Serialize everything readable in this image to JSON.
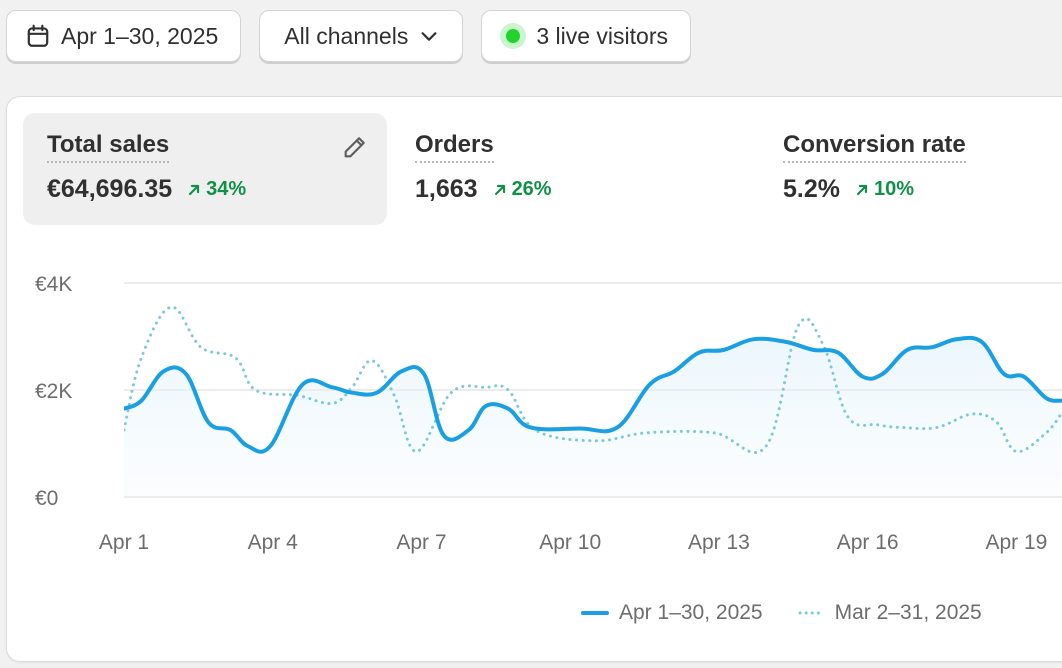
{
  "toolbar": {
    "date_range_label": "Apr 1–30, 2025",
    "channel_label": "All channels",
    "live_label": "3 live visitors"
  },
  "metrics": [
    {
      "label": "Total sales",
      "value": "€64,696.35",
      "change": "34%"
    },
    {
      "label": "Orders",
      "value": "1,663",
      "change": "26%"
    },
    {
      "label": "Conversion rate",
      "value": "5.2%",
      "change": "10%"
    }
  ],
  "colors": {
    "current": "#1a9fe3",
    "previous": "#7ccad6",
    "positive": "#11904a",
    "grid": "#e6e6e6",
    "axis_text": "#6d6d6d"
  },
  "icons": {
    "date": "calendar-icon",
    "channel": "chevron-down-icon",
    "edit": "pencil-icon",
    "change": "arrow-up-right-icon"
  },
  "chart_data": {
    "type": "line",
    "y_tick_labels": [
      "€4K",
      "€2K",
      "€0"
    ],
    "y_ticks": [
      4000,
      2000,
      0
    ],
    "ylim": [
      0,
      4000
    ],
    "x_tick_labels": [
      "Apr 1",
      "Apr 4",
      "Apr 7",
      "Apr 10",
      "Apr 13",
      "Apr 16",
      "Apr 19"
    ],
    "x_ticks": [
      1,
      4,
      7,
      10,
      13,
      16,
      19
    ],
    "grid": true,
    "legend_position": "bottom-right",
    "series": [
      {
        "name": "Apr 1–30, 2025",
        "style": "solid",
        "fill": true,
        "points": [
          [
            1,
            1650
          ],
          [
            1.35,
            1800
          ],
          [
            1.8,
            2350
          ],
          [
            2.25,
            2300
          ],
          [
            2.7,
            1400
          ],
          [
            3.15,
            1250
          ],
          [
            3.5,
            950
          ],
          [
            3.95,
            950
          ],
          [
            4.6,
            2100
          ],
          [
            5.2,
            2050
          ],
          [
            5.6,
            1950
          ],
          [
            6.1,
            1950
          ],
          [
            6.6,
            2350
          ],
          [
            7.05,
            2300
          ],
          [
            7.45,
            1150
          ],
          [
            7.95,
            1250
          ],
          [
            8.3,
            1700
          ],
          [
            8.75,
            1650
          ],
          [
            9.2,
            1300
          ],
          [
            10.2,
            1280
          ],
          [
            10.95,
            1300
          ],
          [
            11.6,
            2100
          ],
          [
            12.1,
            2350
          ],
          [
            12.6,
            2700
          ],
          [
            13.1,
            2750
          ],
          [
            13.7,
            2950
          ],
          [
            14.35,
            2900
          ],
          [
            14.9,
            2750
          ],
          [
            15.4,
            2700
          ],
          [
            15.9,
            2250
          ],
          [
            16.3,
            2300
          ],
          [
            16.8,
            2750
          ],
          [
            17.3,
            2800
          ],
          [
            17.8,
            2950
          ],
          [
            18.3,
            2900
          ],
          [
            18.75,
            2300
          ],
          [
            19.15,
            2250
          ],
          [
            19.6,
            1850
          ],
          [
            19.9,
            1800
          ]
        ]
      },
      {
        "name": "Mar 2–31, 2025",
        "style": "dotted",
        "fill": false,
        "points": [
          [
            1,
            1250
          ],
          [
            1.35,
            2600
          ],
          [
            1.95,
            3550
          ],
          [
            2.55,
            2800
          ],
          [
            3.25,
            2600
          ],
          [
            3.65,
            2000
          ],
          [
            4.5,
            1900
          ],
          [
            5.2,
            1750
          ],
          [
            5.6,
            2050
          ],
          [
            6.0,
            2550
          ],
          [
            6.45,
            1900
          ],
          [
            6.9,
            850
          ],
          [
            7.6,
            1950
          ],
          [
            8.3,
            2050
          ],
          [
            8.75,
            2000
          ],
          [
            9.3,
            1250
          ],
          [
            10.5,
            1050
          ],
          [
            11.55,
            1200
          ],
          [
            12.9,
            1200
          ],
          [
            13.95,
            950
          ],
          [
            14.6,
            3200
          ],
          [
            15.1,
            2850
          ],
          [
            15.6,
            1500
          ],
          [
            16.2,
            1350
          ],
          [
            16.7,
            1300
          ],
          [
            17.4,
            1300
          ],
          [
            18.1,
            1550
          ],
          [
            18.6,
            1400
          ],
          [
            19.0,
            850
          ],
          [
            19.6,
            1200
          ],
          [
            19.9,
            1550
          ]
        ]
      }
    ]
  }
}
